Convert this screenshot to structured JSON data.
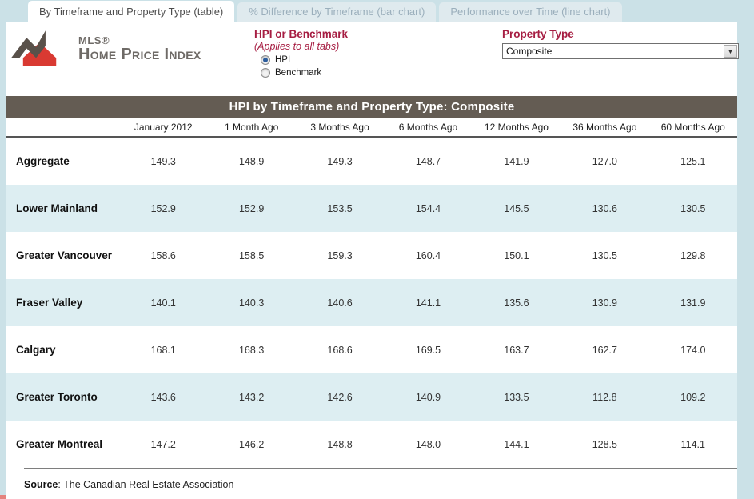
{
  "tabs": [
    {
      "label": "By Timeframe and Property Type (table)",
      "active": true
    },
    {
      "label": "% Difference by Timeframe (bar chart)",
      "active": false
    },
    {
      "label": "Performance over Time (line chart)",
      "active": false
    }
  ],
  "logo": {
    "mls": "MLS®",
    "name": "Home Price Index"
  },
  "controls": {
    "hpi_benchmark": {
      "title": "HPI or Benchmark",
      "subtitle": "(Applies to all tabs)",
      "options": [
        {
          "label": "HPI",
          "selected": true
        },
        {
          "label": "Benchmark",
          "selected": false
        }
      ]
    },
    "property_type": {
      "label": "Property Type",
      "value": "Composite"
    }
  },
  "table": {
    "title": "HPI by Timeframe and Property Type: Composite",
    "columns": [
      "January 2012",
      "1 Month Ago",
      "3 Months Ago",
      "6 Months Ago",
      "12 Months Ago",
      "36 Months Ago",
      "60 Months Ago"
    ],
    "rows": [
      {
        "label": "Aggregate",
        "values": [
          "149.3",
          "148.9",
          "149.3",
          "148.7",
          "141.9",
          "127.0",
          "125.1"
        ]
      },
      {
        "label": "Lower Mainland",
        "values": [
          "152.9",
          "152.9",
          "153.5",
          "154.4",
          "145.5",
          "130.6",
          "130.5"
        ]
      },
      {
        "label": "Greater Vancouver",
        "values": [
          "158.6",
          "158.5",
          "159.3",
          "160.4",
          "150.1",
          "130.5",
          "129.8"
        ]
      },
      {
        "label": "Fraser Valley",
        "values": [
          "140.1",
          "140.3",
          "140.6",
          "141.1",
          "135.6",
          "130.9",
          "131.9"
        ]
      },
      {
        "label": "Calgary",
        "values": [
          "168.1",
          "168.3",
          "168.6",
          "169.5",
          "163.7",
          "162.7",
          "174.0"
        ]
      },
      {
        "label": "Greater Toronto",
        "values": [
          "143.6",
          "143.2",
          "142.6",
          "140.9",
          "133.5",
          "112.8",
          "109.2"
        ]
      },
      {
        "label": "Greater Montreal",
        "values": [
          "147.2",
          "146.2",
          "148.8",
          "148.0",
          "144.1",
          "128.5",
          "114.1"
        ]
      }
    ]
  },
  "footer": {
    "source_label": "Source",
    "source_text": ": The Canadian Real Estate Association"
  },
  "colors": {
    "page_background": "#cbe1e7",
    "accent_maroon": "#a61d42",
    "title_band": "#645c53",
    "alt_row": "#ddeef2",
    "logo_red": "#d93a32",
    "logo_dark": "#59514a"
  }
}
